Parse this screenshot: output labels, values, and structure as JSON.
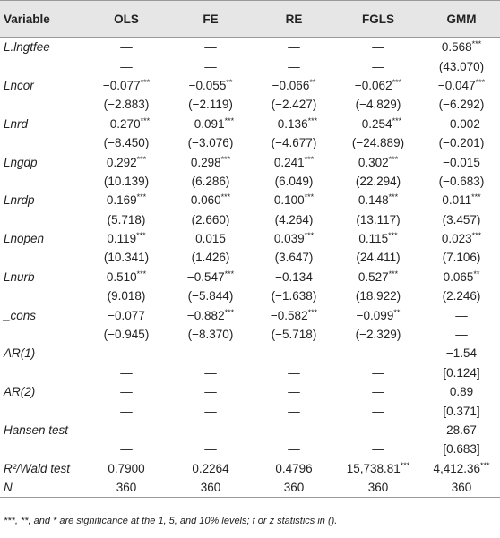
{
  "table": {
    "header": [
      "Variable",
      "OLS",
      "FE",
      "RE",
      "FGLS",
      "GMM"
    ],
    "rows": [
      {
        "label": "L.lngtfee",
        "cells": [
          "—",
          "—",
          "—",
          "—",
          "0.568***"
        ]
      },
      {
        "cells": [
          "—",
          "—",
          "—",
          "—",
          "(43.070)"
        ]
      },
      {
        "label": "Lncor",
        "cells": [
          "−0.077***",
          "−0.055**",
          "−0.066**",
          "−0.062***",
          "−0.047***"
        ]
      },
      {
        "cells": [
          "(−2.883)",
          "(−2.119)",
          "(−2.427)",
          "(−4.829)",
          "(−6.292)"
        ]
      },
      {
        "label": "Lnrd",
        "cells": [
          "−0.270***",
          "−0.091***",
          "−0.136***",
          "−0.254***",
          "−0.002"
        ]
      },
      {
        "cells": [
          "(−8.450)",
          "(−3.076)",
          "(−4.677)",
          "(−24.889)",
          "(−0.201)"
        ]
      },
      {
        "label": "Lngdp",
        "cells": [
          "0.292***",
          "0.298***",
          "0.241***",
          "0.302***",
          "−0.015"
        ]
      },
      {
        "cells": [
          "(10.139)",
          "(6.286)",
          "(6.049)",
          "(22.294)",
          "(−0.683)"
        ]
      },
      {
        "label": "Lnrdp",
        "cells": [
          "0.169***",
          "0.060***",
          "0.100***",
          "0.148***",
          "0.011***"
        ]
      },
      {
        "cells": [
          "(5.718)",
          "(2.660)",
          "(4.264)",
          "(13.117)",
          "(3.457)"
        ]
      },
      {
        "label": "Lnopen",
        "cells": [
          "0.119***",
          "0.015",
          "0.039***",
          "0.115***",
          "0.023***"
        ]
      },
      {
        "cells": [
          "(10.341)",
          "(1.426)",
          "(3.647)",
          "(24.411)",
          "(7.106)"
        ]
      },
      {
        "label": "Lnurb",
        "cells": [
          "0.510***",
          "−0.547***",
          "−0.134",
          "0.527***",
          "0.065**"
        ]
      },
      {
        "cells": [
          "(9.018)",
          "(−5.844)",
          "(−1.638)",
          "(18.922)",
          "(2.246)"
        ]
      },
      {
        "label": "_cons",
        "cells": [
          "−0.077",
          "−0.882***",
          "−0.582***",
          "−0.099**",
          "—"
        ]
      },
      {
        "cells": [
          "(−0.945)",
          "(−8.370)",
          "(−5.718)",
          "(−2.329)",
          "—"
        ]
      },
      {
        "label": "AR(1)",
        "cells": [
          "—",
          "—",
          "—",
          "—",
          "−1.54"
        ]
      },
      {
        "cells": [
          "—",
          "—",
          "—",
          "—",
          "[0.124]"
        ]
      },
      {
        "label": "AR(2)",
        "cells": [
          "—",
          "—",
          "—",
          "—",
          "0.89"
        ]
      },
      {
        "cells": [
          "—",
          "—",
          "—",
          "—",
          "[0.371]"
        ]
      },
      {
        "label": "Hansen test",
        "cells": [
          "—",
          "—",
          "—",
          "—",
          "28.67"
        ]
      },
      {
        "cells": [
          "—",
          "—",
          "—",
          "—",
          "[0.683]"
        ]
      },
      {
        "label": "R²/Wald test",
        "cells": [
          "0.7900",
          "0.2264",
          "0.4796",
          "15,738.81***",
          "4,412.36***"
        ]
      },
      {
        "label": "N",
        "cells": [
          "360",
          "360",
          "360",
          "360",
          "360"
        ]
      }
    ],
    "footnote": "***, **, and * are significance at the 1, 5, and 10% levels; t or z statistics in ()."
  }
}
